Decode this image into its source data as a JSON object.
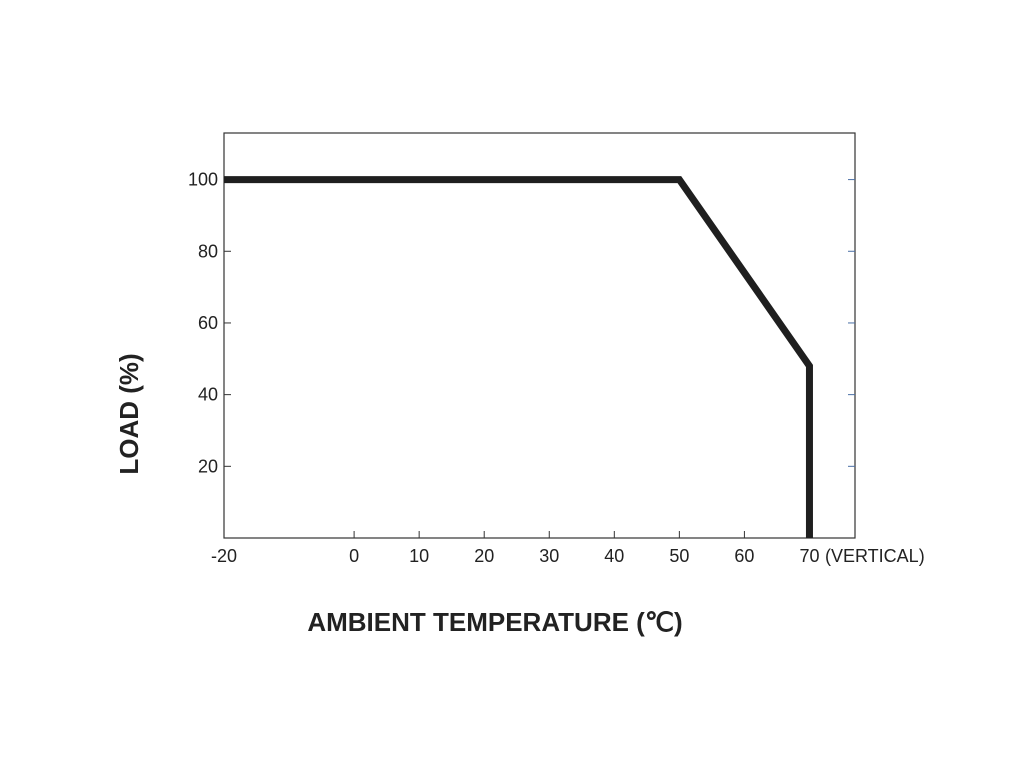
{
  "chart_data": {
    "type": "line",
    "title": "",
    "xlabel": "AMBIENT TEMPERATURE (℃)",
    "ylabel": "LOAD (%)",
    "xlim": [
      -20,
      77
    ],
    "ylim": [
      0,
      113
    ],
    "x_ticks": [
      -20,
      0,
      10,
      20,
      30,
      40,
      50,
      60,
      70
    ],
    "y_ticks": [
      20,
      40,
      60,
      80,
      100
    ],
    "x_tick_suffix": "(VERTICAL)",
    "grid": false,
    "series": [
      {
        "color": "#1f1f1f",
        "points": [
          {
            "x": -20,
            "y": 100
          },
          {
            "x": 50,
            "y": 100
          },
          {
            "x": 70,
            "y": 48
          },
          {
            "x": 70,
            "y": 0
          }
        ]
      }
    ]
  }
}
